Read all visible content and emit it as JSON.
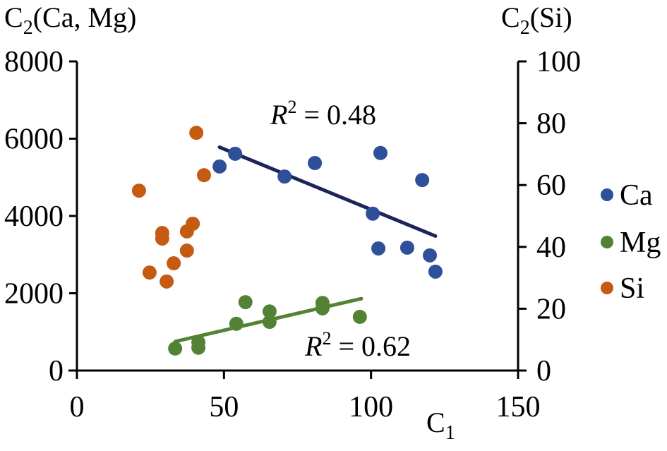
{
  "chart_data": {
    "type": "scatter",
    "title": "",
    "xlabel": "C",
    "xlabel_sub": "1",
    "ylabel_left": "C",
    "ylabel_left_sub": "2",
    "ylabel_left_rest": "(Ca, Mg)",
    "ylabel_right": "C",
    "ylabel_right_sub": "2",
    "ylabel_right_rest": "(Si)",
    "xlim": [
      0,
      150
    ],
    "ylim_left": [
      0,
      8000
    ],
    "ylim_right": [
      0,
      100
    ],
    "x_ticks": [
      "0",
      "50",
      "100",
      "150"
    ],
    "x_tick_values": [
      0,
      50,
      100,
      150
    ],
    "y_left_ticks": [
      "0",
      "2000",
      "4000",
      "6000",
      "8000"
    ],
    "y_left_tick_values": [
      0,
      2000,
      4000,
      6000,
      8000
    ],
    "y_right_ticks": [
      "0",
      "20",
      "40",
      "60",
      "80",
      "100"
    ],
    "y_right_tick_values": [
      0,
      20,
      40,
      60,
      80,
      100
    ],
    "grid": false,
    "legend_position": "right",
    "series": [
      {
        "name": "Ca",
        "axis": "left",
        "color": "#2f4f9a",
        "points": [
          [
            48.5,
            5280
          ],
          [
            53.8,
            5610
          ],
          [
            70.6,
            5020
          ],
          [
            80.9,
            5370
          ],
          [
            100.6,
            4060
          ],
          [
            103.2,
            5630
          ],
          [
            117.4,
            4930
          ],
          [
            102.5,
            3160
          ],
          [
            112.3,
            3180
          ],
          [
            120.0,
            2980
          ],
          [
            121.9,
            2560
          ]
        ],
        "trendline": {
          "x": [
            48.5,
            121.9
          ],
          "y": [
            5780,
            3480
          ],
          "color": "#1c2559",
          "r2_label": "R",
          "r2_sup": "2",
          "r2_text": " = 0.48"
        }
      },
      {
        "name": "Mg",
        "axis": "left",
        "color": "#548235",
        "points": [
          [
            33.4,
            570
          ],
          [
            41.3,
            730
          ],
          [
            41.3,
            590
          ],
          [
            54.2,
            1210
          ],
          [
            57.3,
            1770
          ],
          [
            65.5,
            1530
          ],
          [
            65.5,
            1260
          ],
          [
            83.5,
            1750
          ],
          [
            83.5,
            1610
          ],
          [
            96.2,
            1390
          ]
        ],
        "trendline": {
          "x": [
            33.4,
            96.7
          ],
          "y": [
            750,
            1860
          ],
          "color": "#548235",
          "r2_label": "R",
          "r2_sup": "2",
          "r2_text": " = 0.62"
        }
      },
      {
        "name": "Si",
        "axis": "right",
        "color": "#c55a11",
        "points": [
          [
            40.6,
            76.9
          ],
          [
            43.2,
            63.2
          ],
          [
            21.1,
            58.2
          ],
          [
            29.0,
            44.5
          ],
          [
            29.0,
            42.7
          ],
          [
            39.4,
            47.5
          ],
          [
            37.4,
            45.0
          ],
          [
            37.4,
            38.8
          ],
          [
            32.9,
            34.7
          ],
          [
            24.7,
            31.7
          ],
          [
            30.5,
            28.8
          ]
        ]
      }
    ]
  }
}
